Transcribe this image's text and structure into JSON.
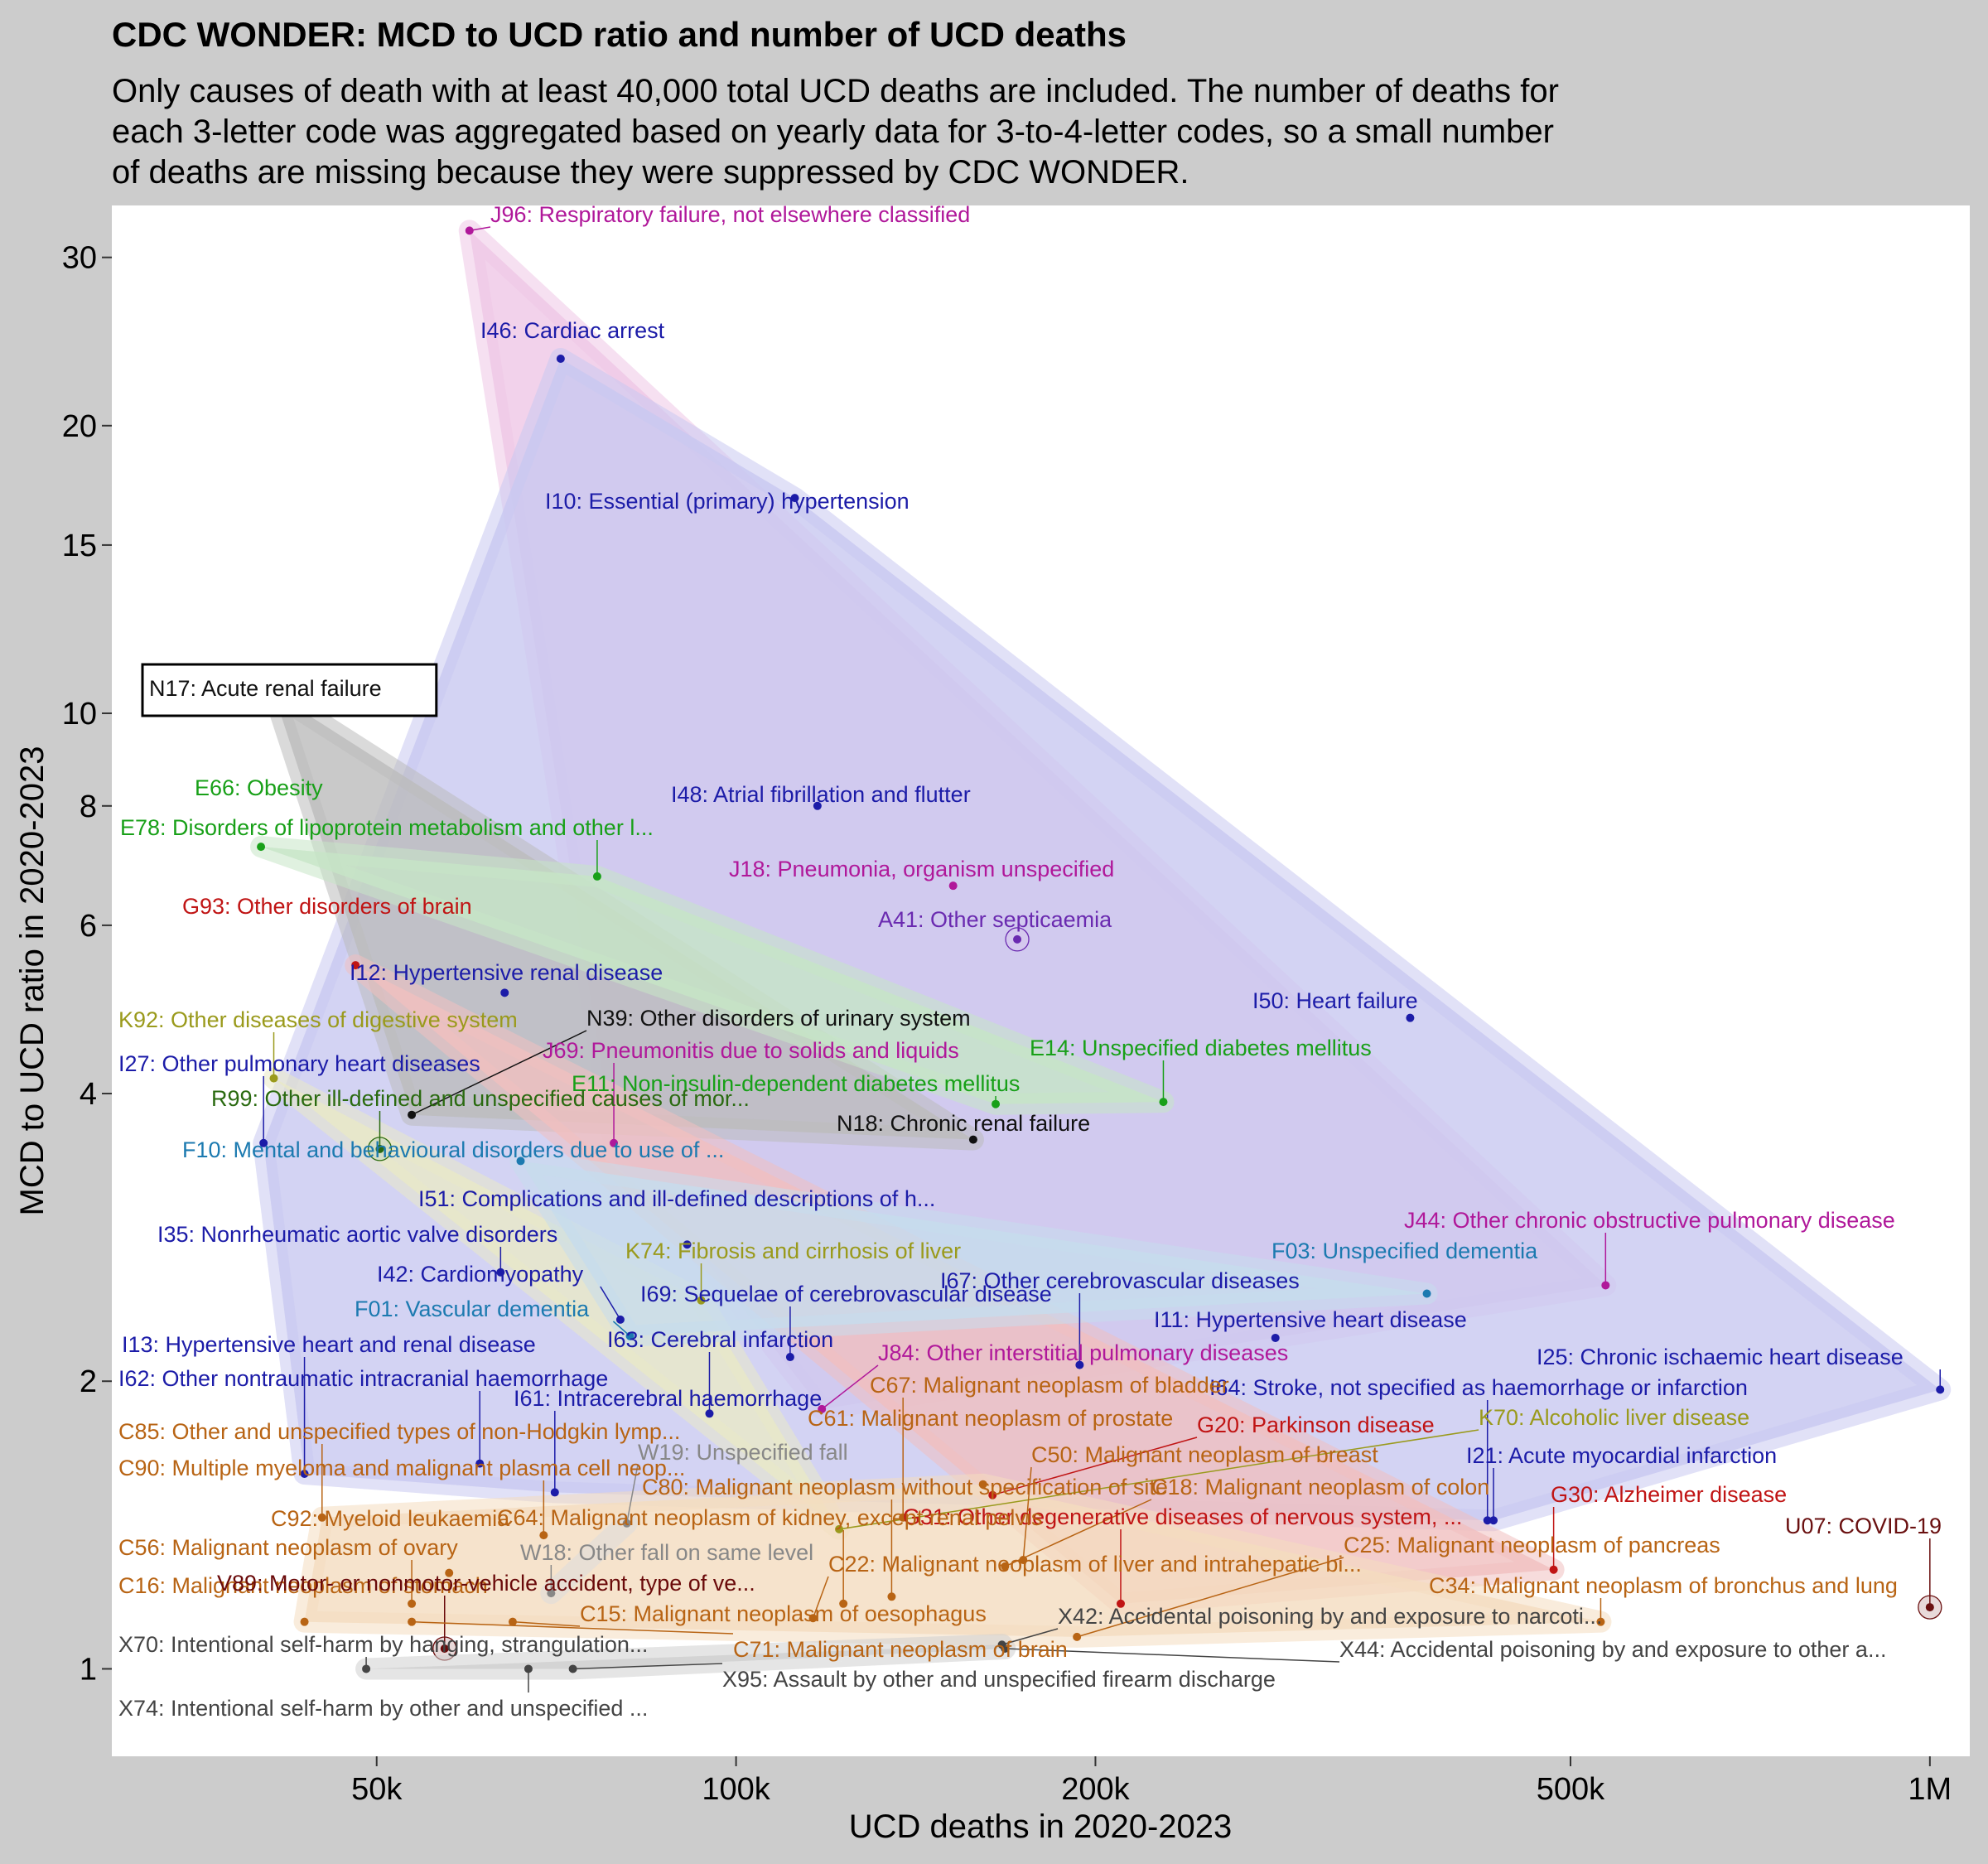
{
  "chart_data": {
    "type": "scatter",
    "title": "CDC WONDER: MCD to UCD ratio and number of UCD deaths",
    "subtitle": [
      "Only causes of death with at least 40,000 total UCD deaths are included. The number of deaths for",
      "each 3-letter code was aggregated based on yearly data for 3-to-4-letter codes, so a small number",
      "of deaths are missing because they were suppressed by CDC WONDER."
    ],
    "xlabel": "UCD deaths in 2020-2023",
    "ylabel": "MCD to UCD ratio in 2020-2023",
    "x_scale": "log",
    "y_scale": "log",
    "xlim": [
      30000,
      1080000
    ],
    "ylim": [
      0.81,
      34
    ],
    "x_ticks": [
      {
        "v": 50000,
        "label": "50k"
      },
      {
        "v": 100000,
        "label": "100k"
      },
      {
        "v": 200000,
        "label": "200k"
      },
      {
        "v": 500000,
        "label": "500k"
      },
      {
        "v": 1000000,
        "label": "1M"
      }
    ],
    "y_ticks": [
      {
        "v": 1,
        "label": "1"
      },
      {
        "v": 2,
        "label": "2"
      },
      {
        "v": 4,
        "label": "4"
      },
      {
        "v": 6,
        "label": "6"
      },
      {
        "v": 8,
        "label": "8"
      },
      {
        "v": 10,
        "label": "10"
      },
      {
        "v": 15,
        "label": "15"
      },
      {
        "v": 20,
        "label": "20"
      },
      {
        "v": 30,
        "label": "30"
      }
    ],
    "groups": [
      {
        "chapter": "I",
        "color": "#1c1ca8",
        "fill": "#c8c8f0"
      },
      {
        "chapter": "J",
        "color": "#b0189a",
        "fill": "#eec6e6"
      },
      {
        "chapter": "N",
        "color": "#111111",
        "fill": "#bbbbbb"
      },
      {
        "chapter": "E",
        "color": "#18a018",
        "fill": "#c6e6c6"
      },
      {
        "chapter": "G",
        "color": "#c01414",
        "fill": "#f0c0c0"
      },
      {
        "chapter": "K",
        "color": "#9a9a1c",
        "fill": "#eaeac6"
      },
      {
        "chapter": "F",
        "color": "#1c7ab0",
        "fill": "#c6dcec"
      },
      {
        "chapter": "C",
        "color": "#b86414",
        "fill": "#f4dcc0"
      },
      {
        "chapter": "R",
        "color": "#2a6a10",
        "fill": "#c8d8c0"
      },
      {
        "chapter": "A",
        "color": "#6a2ab0",
        "fill": "#d6c6ec"
      },
      {
        "chapter": "U",
        "color": "#6a1010",
        "fill": "#d8c0c0"
      },
      {
        "chapter": "V",
        "color": "#6a0a0a",
        "fill": "#d8c0c0"
      },
      {
        "chapter": "W",
        "color": "#888888",
        "fill": "#dcdcdc"
      },
      {
        "chapter": "X",
        "color": "#444444",
        "fill": "#cfcfcf"
      }
    ],
    "points": [
      {
        "code": "J96",
        "label": "J96: Respiratory failure, not elsewhere classified",
        "x": 59800,
        "y": 32.0
      },
      {
        "code": "I46",
        "label": "I46: Cardiac arrest",
        "x": 71300,
        "y": 23.5
      },
      {
        "code": "I10",
        "label": "I10: Essential (primary) hypertension",
        "x": 112000,
        "y": 16.8
      },
      {
        "code": "N17",
        "label": "N17: Acute renal failure",
        "x": 41000,
        "y": 10.5
      },
      {
        "code": "I48",
        "label": "I48: Atrial fibrillation and flutter",
        "x": 117000,
        "y": 8.0
      },
      {
        "code": "E66",
        "label": "E66: Obesity",
        "x": 40000,
        "y": 7.25
      },
      {
        "code": "E78",
        "label": "E78: Disorders of lipoprotein metabolism and other l...",
        "x": 76500,
        "y": 6.75
      },
      {
        "code": "J18",
        "label": "J18: Pneumonia, organism unspecified",
        "x": 152000,
        "y": 6.6
      },
      {
        "code": "A41",
        "label": "A41: Other septicaemia",
        "x": 172000,
        "y": 5.8
      },
      {
        "code": "G93",
        "label": "G93: Other disorders of brain",
        "x": 48000,
        "y": 5.45
      },
      {
        "code": "I12",
        "label": "I12: Hypertensive renal disease",
        "x": 64000,
        "y": 5.1
      },
      {
        "code": "I50",
        "label": "I50: Heart failure",
        "x": 367000,
        "y": 4.8
      },
      {
        "code": "K92",
        "label": "K92: Other diseases of digestive system",
        "x": 41000,
        "y": 4.15
      },
      {
        "code": "N39",
        "label": "N39: Other disorders of urinary system",
        "x": 53500,
        "y": 3.8
      },
      {
        "code": "J69",
        "label": "J69: Pneumonitis due to solids and liquids",
        "x": 79000,
        "y": 3.55
      },
      {
        "code": "E14",
        "label": "E14: Unspecified diabetes mellitus",
        "x": 228000,
        "y": 3.92
      },
      {
        "code": "E11",
        "label": "E11: Non-insulin-dependent diabetes mellitus",
        "x": 165000,
        "y": 3.9
      },
      {
        "code": "I27",
        "label": "I27: Other pulmonary heart diseases",
        "x": 40200,
        "y": 3.55
      },
      {
        "code": "R99",
        "label": "R99: Other ill-defined and unspecified causes of mor...",
        "x": 50300,
        "y": 3.5
      },
      {
        "code": "N18",
        "label": "N18: Chronic renal failure",
        "x": 158000,
        "y": 3.58
      },
      {
        "code": "F10",
        "label": "F10: Mental and behavioural disorders due to use of ...",
        "x": 66000,
        "y": 3.4
      },
      {
        "code": "I51",
        "label": "I51: Complications and ill-defined descriptions of h...",
        "x": 91000,
        "y": 2.78
      },
      {
        "code": "I35",
        "label": "I35: Nonrheumatic aortic valve disorders",
        "x": 63500,
        "y": 2.6
      },
      {
        "code": "K74",
        "label": "K74: Fibrosis and cirrhosis of liver",
        "x": 93500,
        "y": 2.43
      },
      {
        "code": "I42",
        "label": "I42: Cardiomyopathy",
        "x": 80000,
        "y": 2.32
      },
      {
        "code": "F03",
        "label": "F03: Unspecified dementia",
        "x": 379000,
        "y": 2.47
      },
      {
        "code": "J44",
        "label": "J44: Other chronic obstructive pulmonary disease",
        "x": 535000,
        "y": 2.52
      },
      {
        "code": "I25",
        "label": "I25: Chronic ischaemic heart disease",
        "x": 1020000,
        "y": 1.96
      },
      {
        "code": "F01",
        "label": "F01: Vascular dementia",
        "x": 81500,
        "y": 2.23
      },
      {
        "code": "I69",
        "label": "I69: Sequelae of cerebrovascular disease",
        "x": 111000,
        "y": 2.12
      },
      {
        "code": "I67",
        "label": "I67: Other cerebrovascular diseases",
        "x": 194000,
        "y": 2.08
      },
      {
        "code": "I11",
        "label": "I11: Hypertensive heart disease",
        "x": 283000,
        "y": 2.22
      },
      {
        "code": "I63",
        "label": "I63: Cerebral infarction",
        "x": 95000,
        "y": 1.85
      },
      {
        "code": "J84",
        "label": "J84: Other interstitial pulmonary diseases",
        "x": 118000,
        "y": 1.87
      },
      {
        "code": "I13",
        "label": "I13: Hypertensive heart and renal disease",
        "x": 43500,
        "y": 1.6
      },
      {
        "code": "I62",
        "label": "I62: Other nontraumatic intracranial haemorrhage",
        "x": 61000,
        "y": 1.64
      },
      {
        "code": "I61",
        "label": "I61: Intracerebral haemorrhage",
        "x": 70500,
        "y": 1.53
      },
      {
        "code": "I64",
        "label": "I64: Stroke, not specified as haemorrhage or infarction",
        "x": 426000,
        "y": 1.43
      },
      {
        "code": "I21",
        "label": "I21: Acute myocardial infarction",
        "x": 431000,
        "y": 1.43
      },
      {
        "code": "C67",
        "label": "C67: Malignant neoplasm of bladder",
        "x": 138000,
        "y": 1.44
      },
      {
        "code": "C61",
        "label": "C61: Malignant neoplasm of prostate",
        "x": 161000,
        "y": 1.56
      },
      {
        "code": "G20",
        "label": "G20: Parkinson disease",
        "x": 164000,
        "y": 1.52
      },
      {
        "code": "K70",
        "label": "K70: Alcoholic liver disease",
        "x": 122000,
        "y": 1.4
      },
      {
        "code": "C85",
        "label": "C85: Other and unspecified types of non-Hodgkin lymp...",
        "x": 45000,
        "y": 1.44
      },
      {
        "code": "C90",
        "label": "C90: Multiple myeloma and malignant plasma cell neop...",
        "x": 69000,
        "y": 1.38
      },
      {
        "code": "W19",
        "label": "W19: Unspecified fall",
        "x": 81000,
        "y": 1.42
      },
      {
        "code": "C50",
        "label": "C50: Malignant neoplasm of breast",
        "x": 174000,
        "y": 1.3
      },
      {
        "code": "C18",
        "label": "C18: Malignant neoplasm of colon",
        "x": 168000,
        "y": 1.28
      },
      {
        "code": "G30",
        "label": "G30: Alzheimer disease",
        "x": 484000,
        "y": 1.27
      },
      {
        "code": "U07",
        "label": "U07: COVID-19",
        "x": 1000000,
        "y": 1.16
      },
      {
        "code": "C80",
        "label": "C80: Malignant neoplasm without specification of site",
        "x": 135000,
        "y": 1.19
      },
      {
        "code": "G31",
        "label": "G31: Other degenerative diseases of nervous system, ...",
        "x": 210000,
        "y": 1.17
      },
      {
        "code": "C64",
        "label": "C64: Malignant neoplasm of kidney, except renal pelvis",
        "x": 123000,
        "y": 1.17
      },
      {
        "code": "C92",
        "label": "C92: Myeloid leukaemia",
        "x": 57500,
        "y": 1.26
      },
      {
        "code": "W18",
        "label": "W18: Other fall on same level",
        "x": 70000,
        "y": 1.2
      },
      {
        "code": "C56",
        "label": "C56: Malignant neoplasm of ovary",
        "x": 53500,
        "y": 1.17
      },
      {
        "code": "C25",
        "label": "C25: Malignant neoplasm of pancreas",
        "x": 193000,
        "y": 1.08
      },
      {
        "code": "C22",
        "label": "C22: Malignant neoplasm of liver and intrahepatic bi...",
        "x": 116000,
        "y": 1.13
      },
      {
        "code": "C34",
        "label": "C34: Malignant neoplasm of bronchus and lung",
        "x": 530000,
        "y": 1.12
      },
      {
        "code": "C16",
        "label": "C16: Malignant neoplasm of stomach",
        "x": 43500,
        "y": 1.12
      },
      {
        "code": "V89",
        "label": "V89: Motor- or nonmotor-vehicle accident, type of ve...",
        "x": 57000,
        "y": 1.05
      },
      {
        "code": "C15",
        "label": "C15: Malignant neoplasm of oesophagus",
        "x": 65000,
        "y": 1.12
      },
      {
        "code": "C71",
        "label": "C71: Malignant neoplasm of brain",
        "x": 53500,
        "y": 1.12
      },
      {
        "code": "X42",
        "label": "X42: Accidental poisoning by and exposure to narcoti...",
        "x": 167000,
        "y": 1.06
      },
      {
        "code": "X44",
        "label": "X44: Accidental poisoning by and exposure to other a...",
        "x": 168000,
        "y": 1.05
      },
      {
        "code": "X70",
        "label": "X70: Intentional self-harm by hanging, strangulation...",
        "x": 49000,
        "y": 1.0
      },
      {
        "code": "X95",
        "label": "X95: Assault by other and unspecified firearm discharge",
        "x": 73000,
        "y": 1.0
      },
      {
        "code": "X74",
        "label": "X74: Intentional self-harm by other and unspecified ...",
        "x": 67000,
        "y": 1.0
      }
    ]
  }
}
